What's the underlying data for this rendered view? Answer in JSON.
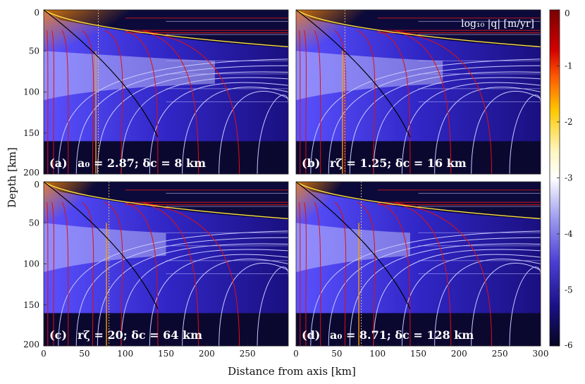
{
  "chart_data": {
    "type": "heatmap",
    "xlabel": "Distance from axis [km]",
    "ylabel": "Depth [km]",
    "xlim": [
      0,
      300
    ],
    "ylim": [
      0,
      200
    ],
    "x_ticks": [
      "0",
      "50",
      "100",
      "150",
      "200",
      "250",
      "300"
    ],
    "y_ticks": [
      "0",
      "50",
      "100",
      "150",
      "200"
    ],
    "colorbar": {
      "label": "log₁₀ |q| [m/yr]",
      "range": [
        -6,
        0
      ],
      "ticks": [
        "0",
        "-1",
        "-2",
        "-3",
        "-4",
        "-5",
        "-6"
      ]
    },
    "panels": [
      {
        "id": "a",
        "label": "(a)",
        "annotation": "a₀ = 2.87; δc = 8 km",
        "dotted_x": 67
      },
      {
        "id": "b",
        "label": "(b)",
        "annotation": "rζ = 1.25; δc = 16 km",
        "dotted_x": 60
      },
      {
        "id": "c",
        "label": "(c)",
        "annotation": "rζ = 20; δc = 64 km",
        "dotted_x": 80
      },
      {
        "id": "d",
        "label": "(d)",
        "annotation": "a₀ = 8.71; δc = 128 km",
        "dotted_x": 80
      }
    ]
  }
}
